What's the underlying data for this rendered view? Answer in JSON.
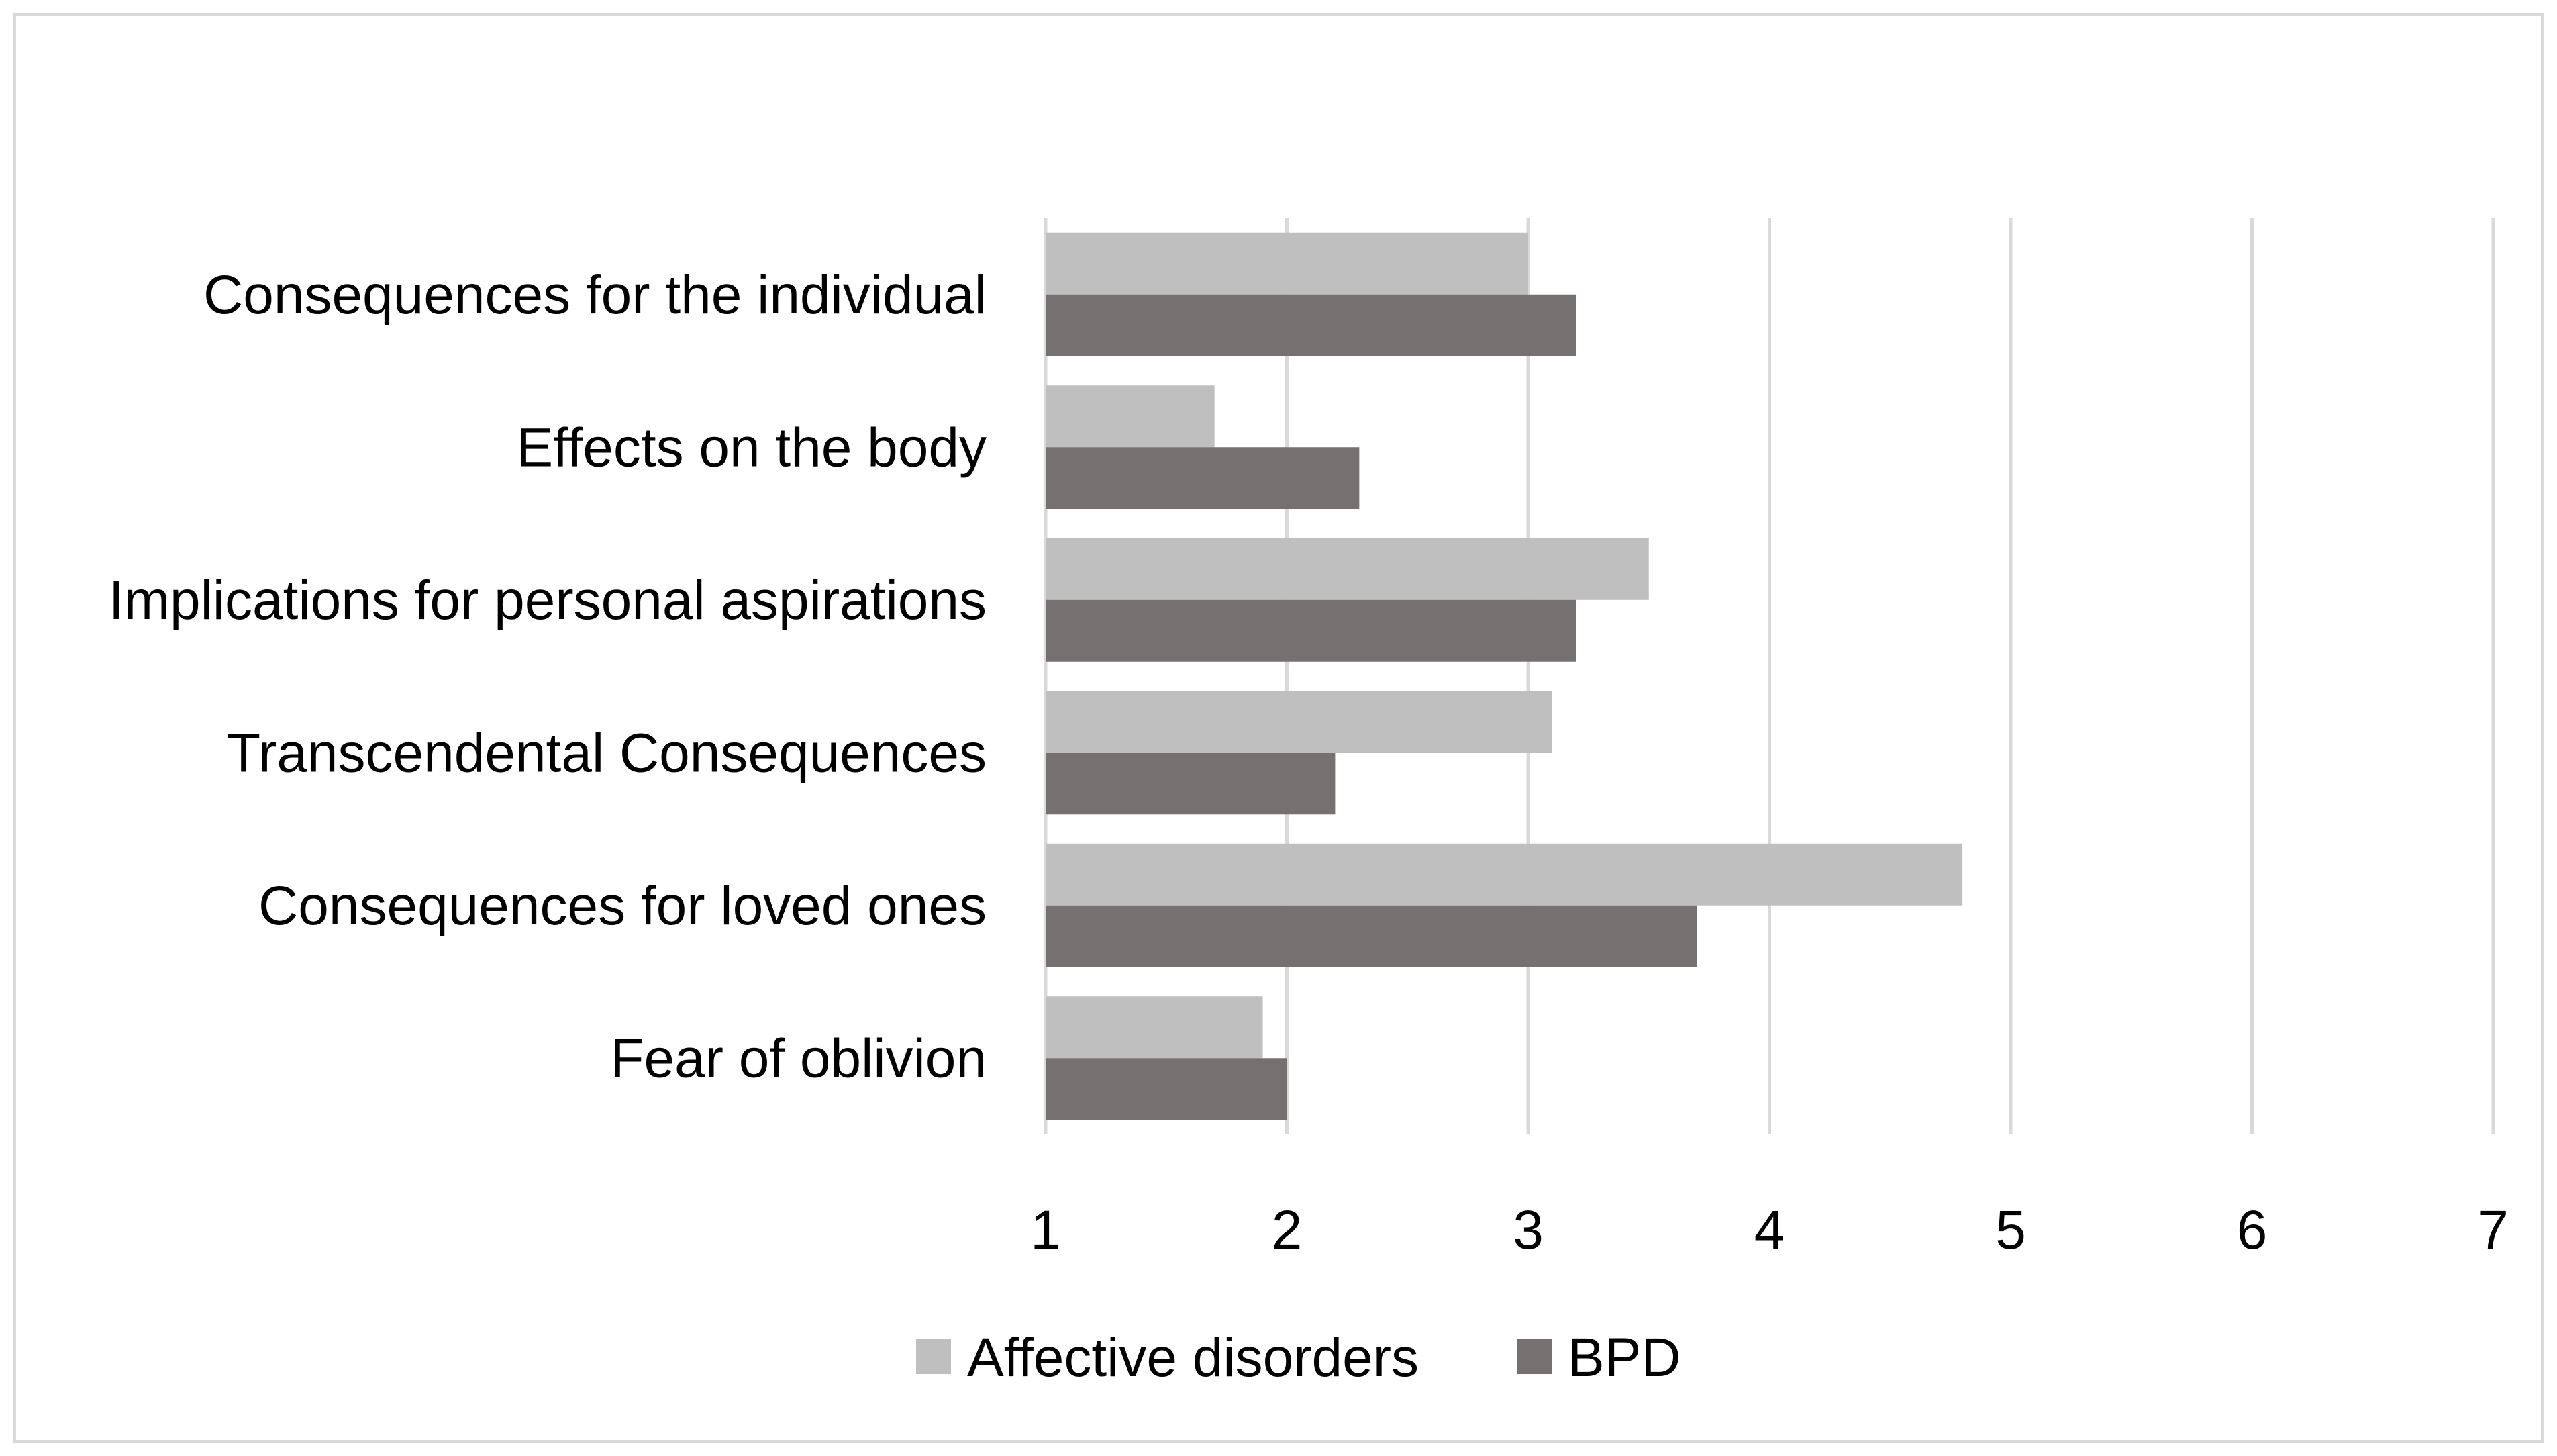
{
  "chart_data": {
    "type": "bar",
    "orientation": "horizontal",
    "title": "",
    "xlabel": "",
    "ylabel": "",
    "xlim": [
      1,
      7
    ],
    "ticks": [
      "1",
      "2",
      "3",
      "4",
      "5",
      "6",
      "7"
    ],
    "grid": true,
    "legend_position": "bottom",
    "categories": [
      "Consequences for the individual",
      "Effects on the body",
      "Implications for personal aspirations",
      "Transcendental Consequences",
      "Consequences for loved ones",
      "Fear of oblivion"
    ],
    "series": [
      {
        "name": "Affective disorders",
        "color": "#bfbfbf",
        "values": [
          3.0,
          1.7,
          3.5,
          3.1,
          4.8,
          1.9
        ]
      },
      {
        "name": "BPD",
        "color": "#767171",
        "values": [
          3.2,
          2.3,
          3.2,
          2.2,
          3.7,
          2.0
        ]
      }
    ],
    "gridline_color": "#d9d9d9",
    "frame_color": "#d9d9d9"
  }
}
